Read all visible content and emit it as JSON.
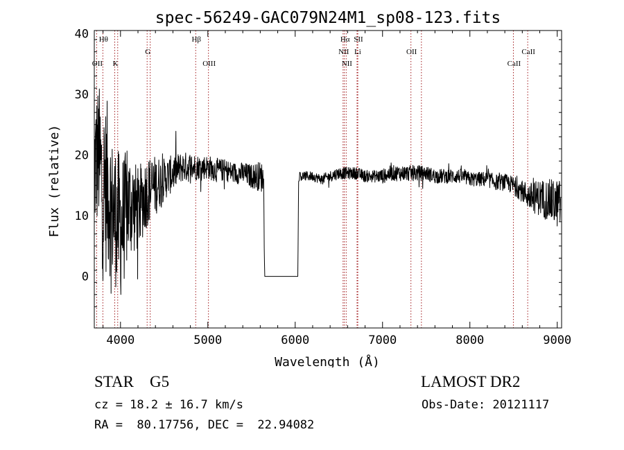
{
  "chart_data": {
    "type": "line",
    "title": "spec-56249-GAC079N24M1_sp08-123.fits",
    "xlabel": "Wavelength (Å)",
    "ylabel": "Flux (relative)",
    "xlim": [
      3700,
      9050
    ],
    "ylim": [
      -8.5,
      40.5
    ],
    "xticks": [
      4000,
      5000,
      6000,
      7000,
      8000,
      9000
    ],
    "yticks": [
      0,
      10,
      20,
      30,
      40
    ],
    "grid": false,
    "colors": {
      "spectrum": "#000000",
      "line_marker": "#a0181b",
      "axis": "#000000"
    },
    "lines": [
      {
        "label": "Hθ",
        "wavelength": 3798,
        "row": 0
      },
      {
        "label": "OII",
        "wavelength": 3727,
        "row": 2
      },
      {
        "label": "K",
        "wavelength": 3934,
        "row": 2
      },
      {
        "label": "G",
        "wavelength": 4305,
        "row": 1
      },
      {
        "label": "Hβ",
        "wavelength": 4861,
        "row": 0
      },
      {
        "label": "OIII",
        "wavelength": 5007,
        "row": 2
      },
      {
        "label": "Hα",
        "wavelength": 6563,
        "row": 0
      },
      {
        "label": "SII",
        "wavelength": 6716,
        "row": 0
      },
      {
        "label": "NII",
        "wavelength": 6548,
        "row": 1
      },
      {
        "label": "Li",
        "wavelength": 6708,
        "row": 1
      },
      {
        "label": "NII",
        "wavelength": 6584,
        "row": 2
      },
      {
        "label": "OII",
        "wavelength": 7325,
        "row": 1
      },
      {
        "label": "CaII",
        "wavelength": 8498,
        "row": 2
      },
      {
        "label": "CaII",
        "wavelength": 8662,
        "row": 1
      }
    ],
    "extra_markers": [
      3968,
      4340,
      6717,
      7445
    ],
    "spectrum": {
      "x": [
        3700,
        3750,
        3800,
        3850,
        3900,
        3950,
        4000,
        4100,
        4200,
        4300,
        4400,
        4500,
        4600,
        4700,
        4800,
        4900,
        5000,
        5100,
        5200,
        5300,
        5400,
        5500,
        5600,
        5640,
        5650,
        6030,
        6040,
        6100,
        6200,
        6300,
        6400,
        6500,
        6600,
        6700,
        6800,
        6900,
        7000,
        7100,
        7200,
        7300,
        7400,
        7500,
        7600,
        7700,
        7800,
        7900,
        8000,
        8100,
        8200,
        8300,
        8400,
        8500,
        8600,
        8700,
        8800,
        8900,
        9000,
        9050
      ],
      "y": [
        18,
        20,
        14,
        15,
        11,
        10,
        8,
        12,
        11,
        14,
        15,
        16,
        17,
        18,
        18,
        18,
        18,
        17.5,
        17.5,
        17,
        17,
        16.5,
        16.5,
        16,
        0,
        0,
        16.5,
        16.5,
        16.5,
        16,
        16.5,
        17,
        17,
        17,
        16.5,
        16.5,
        16.5,
        17,
        17,
        17,
        17,
        17,
        16.5,
        16.5,
        16.5,
        16.5,
        16,
        16,
        16,
        15.5,
        15.5,
        15,
        14,
        13,
        13,
        12.5,
        12,
        12
      ],
      "noise": [
        12,
        12,
        15,
        14,
        12,
        12,
        12,
        9,
        7,
        6,
        5,
        3.5,
        3,
        2.5,
        2.5,
        2,
        2,
        2,
        1.8,
        1.8,
        1.8,
        2,
        2.5,
        2.5,
        0,
        0,
        0.8,
        0.8,
        0.8,
        0.8,
        0.9,
        1,
        1,
        1,
        1,
        1,
        1.2,
        1.3,
        1.3,
        1.3,
        1.3,
        1.2,
        1.2,
        1.2,
        1.2,
        1.2,
        1.2,
        1.2,
        1.3,
        1.3,
        1.4,
        1.5,
        1.8,
        2.5,
        3,
        3.5,
        4,
        4
      ]
    }
  },
  "info": {
    "object_class": "STAR",
    "subclass": "G5",
    "survey": "LAMOST DR2",
    "cz": "cz = 18.2 ± 16.7 km/s",
    "obs_date": "Obs-Date: 20121117",
    "ra_dec": "RA =  80.17756, DEC =  22.94082"
  }
}
